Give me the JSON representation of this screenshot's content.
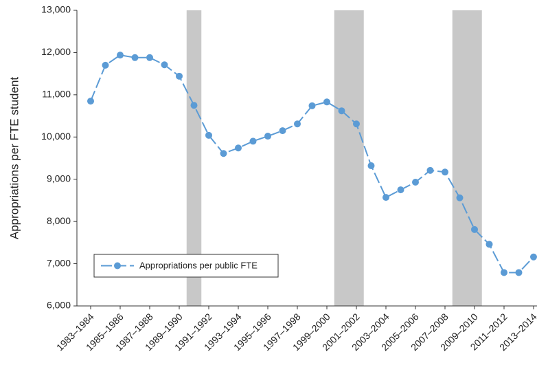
{
  "chart_data": {
    "type": "line",
    "y_label": "Appropriations per FTE student",
    "categories": [
      "1983–1984",
      null,
      "1985–1986",
      null,
      "1987–1988",
      null,
      "1989–1990",
      null,
      "1991–1992",
      null,
      "1993–1994",
      null,
      "1995–1996",
      null,
      "1997–1998",
      null,
      "1999–2000",
      null,
      "2001–2002",
      null,
      "2003–2004",
      null,
      "2005–2006",
      null,
      "2007–2008",
      null,
      "2009–2010",
      null,
      "2011–2012",
      null,
      "2013–2014"
    ],
    "series": [
      {
        "name": "Appropriations per public FTE",
        "color": "#5b9bd5",
        "values": [
          10850,
          11700,
          11940,
          11880,
          11880,
          11710,
          11440,
          10750,
          10040,
          9610,
          9740,
          9900,
          10020,
          10150,
          10310,
          10740,
          10830,
          10620,
          10310,
          9320,
          8570,
          8750,
          8930,
          9210,
          9170,
          8560,
          7810,
          7460,
          6790,
          6790,
          7160
        ]
      }
    ],
    "shaded_ranges": [
      [
        6.5,
        7.5
      ],
      [
        16.5,
        18.5
      ],
      [
        24.5,
        26.5
      ]
    ],
    "shade_color": "#c8c8c8",
    "ylim": [
      6000,
      13000
    ],
    "yticks": [
      {
        "value": 6000,
        "label": "6,000"
      },
      {
        "value": 7000,
        "label": "7,000"
      },
      {
        "value": 8000,
        "label": "8,000"
      },
      {
        "value": 9000,
        "label": "9,000"
      },
      {
        "value": 10000,
        "label": "10,000"
      },
      {
        "value": 11000,
        "label": "11,000"
      },
      {
        "value": 12000,
        "label": "12,000"
      },
      {
        "value": 13000,
        "label": "13,000"
      }
    ],
    "legend": "lower left",
    "grid": false
  }
}
